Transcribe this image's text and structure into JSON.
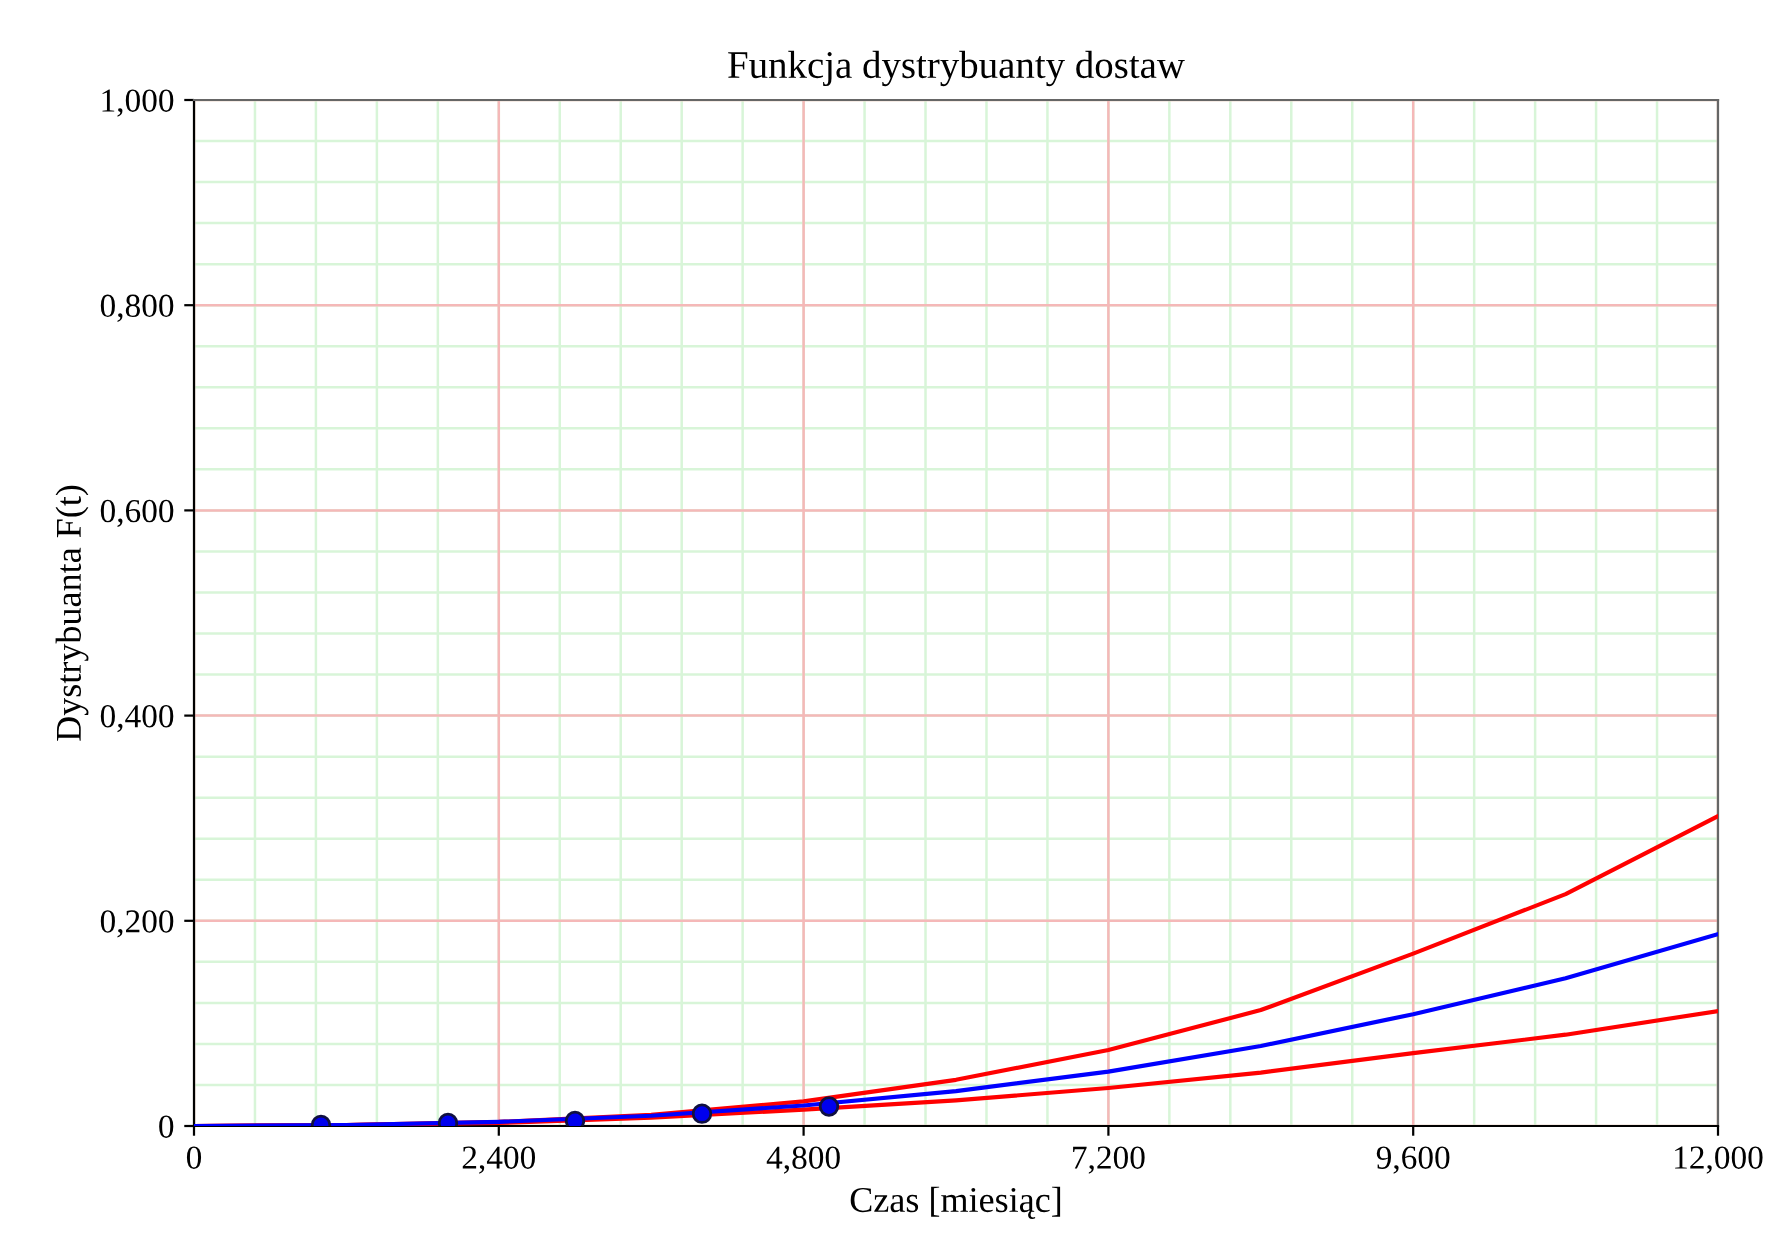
{
  "chart_data": {
    "type": "line",
    "title": "Funkcja dystrybuanty dostaw",
    "xlabel": "Czas [miesiąc]",
    "ylabel": "Dystrybuanta F(t)",
    "xlim": [
      0,
      12
    ],
    "ylim": [
      0,
      1
    ],
    "xticks": [
      0,
      {
        "value": 2.4,
        "label": "2,400"
      },
      {
        "value": 4.8,
        "label": "4,800"
      },
      {
        "value": 7.2,
        "label": "7,200"
      },
      {
        "value": 9.6,
        "label": "9,600"
      },
      {
        "value": 12,
        "label": "12,000"
      }
    ],
    "yticks": [
      0,
      {
        "value": 0.2,
        "label": "0,200"
      },
      {
        "value": 0.4,
        "label": "0,400"
      },
      {
        "value": 0.6,
        "label": "0,600"
      },
      {
        "value": 0.8,
        "label": "0,800"
      },
      {
        "value": 1,
        "label": "1,000"
      }
    ],
    "grid": true,
    "legend": false,
    "series": [
      {
        "color": "#ff0000",
        "x": [
          0,
          1.2,
          2.4,
          3.6,
          4.8,
          6,
          7.2,
          8.4,
          9.6,
          10.8,
          12
        ],
        "values": [
          0,
          0.001,
          0.004,
          0.011,
          0.024,
          0.045,
          0.074,
          0.113,
          0.168,
          0.226,
          0.302
        ]
      },
      {
        "color": "#ff0000",
        "x": [
          0,
          1.2,
          2.4,
          3.6,
          4.8,
          6,
          7.2,
          8.4,
          9.6,
          10.8,
          12
        ],
        "values": [
          0,
          0.001,
          0.003,
          0.008,
          0.016,
          0.025,
          0.037,
          0.052,
          0.071,
          0.089,
          0.112
        ]
      },
      {
        "color": "#0000ff",
        "x": [
          0,
          1.2,
          2.4,
          3.6,
          4.8,
          6,
          7.2,
          8.4,
          9.6,
          10.8,
          12
        ],
        "values": [
          0,
          0.001,
          0.004,
          0.01,
          0.02,
          0.034,
          0.053,
          0.078,
          0.109,
          0.144,
          0.187
        ]
      },
      {
        "type": "scatter",
        "color": "#0000ee",
        "marker": "circle",
        "x": [
          1,
          2,
          3,
          4,
          5
        ],
        "values": [
          0.001,
          0.003,
          0.005,
          0.012,
          0.019
        ]
      }
    ]
  }
}
